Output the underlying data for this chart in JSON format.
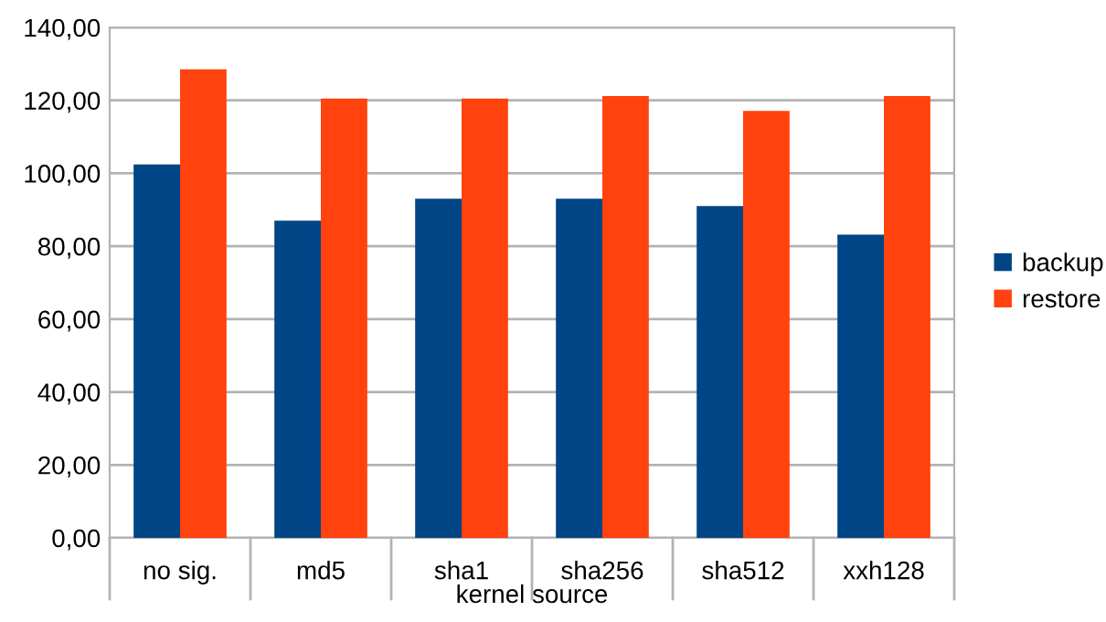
{
  "chart_data": {
    "type": "bar",
    "xlabel": "kernel source",
    "categories": [
      "no sig.",
      "md5",
      "sha1",
      "sha256",
      "sha512",
      "xxh128"
    ],
    "series": [
      {
        "name": "backup",
        "color": "#004586",
        "values": [
          102.4,
          87.0,
          93.0,
          93.0,
          91.0,
          83.2
        ]
      },
      {
        "name": "restore",
        "color": "#ff420e",
        "values": [
          128.5,
          120.5,
          120.5,
          121.2,
          117.1,
          121.2
        ]
      }
    ],
    "ylim": [
      0,
      140
    ],
    "yticks": [
      {
        "value": 0,
        "label": "0,00"
      },
      {
        "value": 20,
        "label": "20,00"
      },
      {
        "value": 40,
        "label": "40,00"
      },
      {
        "value": 60,
        "label": "60,00"
      },
      {
        "value": 80,
        "label": "80,00"
      },
      {
        "value": 100,
        "label": "100,00"
      },
      {
        "value": 120,
        "label": "120,00"
      },
      {
        "value": 140,
        "label": "140,00"
      }
    ],
    "grid": "y",
    "legend": "right"
  }
}
